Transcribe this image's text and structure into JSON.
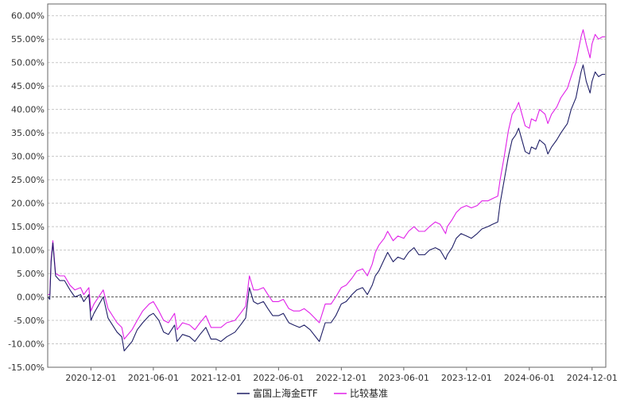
{
  "chart_data": {
    "type": "line",
    "title": "",
    "xlabel": "",
    "ylabel": "",
    "y_unit": "%",
    "ylim": [
      -15,
      62.5
    ],
    "y_ticks": [
      "60.00%",
      "55.00%",
      "50.00%",
      "45.00%",
      "40.00%",
      "35.00%",
      "30.00%",
      "25.00%",
      "20.00%",
      "15.00%",
      "10.00%",
      "5.00%",
      "0.00%",
      "-5.00%",
      "-10.00%",
      "-15.00%"
    ],
    "x_ticks": [
      "2020-12-01",
      "2021-06-01",
      "2021-12-01",
      "2022-06-01",
      "2022-12-01",
      "2023-06-01",
      "2023-12-01",
      "2024-06-01",
      "2024-12-01"
    ],
    "xlim": [
      "2020-07-28",
      "2025-01-10"
    ],
    "grid": true,
    "legend_position": "bottom-center",
    "series": [
      {
        "name": "富国上海金ETF",
        "color": "#1f1f66",
        "x": [
          "2020-07-28",
          "2020-08-03",
          "2020-08-07",
          "2020-08-12",
          "2020-08-20",
          "2020-09-01",
          "2020-09-15",
          "2020-10-01",
          "2020-10-15",
          "2020-11-01",
          "2020-11-10",
          "2020-11-25",
          "2020-12-01",
          "2020-12-10",
          "2021-01-06",
          "2021-01-20",
          "2021-02-15",
          "2021-03-01",
          "2021-03-08",
          "2021-03-31",
          "2021-04-15",
          "2021-05-01",
          "2021-05-20",
          "2021-06-01",
          "2021-06-17",
          "2021-07-01",
          "2021-07-15",
          "2021-08-02",
          "2021-08-09",
          "2021-08-25",
          "2021-09-15",
          "2021-09-30",
          "2021-10-15",
          "2021-11-01",
          "2021-11-16",
          "2021-12-01",
          "2021-12-15",
          "2022-01-01",
          "2022-01-25",
          "2022-02-10",
          "2022-02-25",
          "2022-03-08",
          "2022-03-20",
          "2022-04-01",
          "2022-04-18",
          "2022-05-01",
          "2022-05-15",
          "2022-06-01",
          "2022-06-15",
          "2022-07-01",
          "2022-07-15",
          "2022-08-01",
          "2022-08-15",
          "2022-09-01",
          "2022-09-28",
          "2022-10-15",
          "2022-11-01",
          "2022-11-15",
          "2022-12-01",
          "2022-12-15",
          "2023-01-01",
          "2023-01-15",
          "2023-02-01",
          "2023-02-15",
          "2023-03-01",
          "2023-03-10",
          "2023-03-20",
          "2023-04-05",
          "2023-04-15",
          "2023-05-01",
          "2023-05-15",
          "2023-06-01",
          "2023-06-15",
          "2023-07-01",
          "2023-07-15",
          "2023-08-01",
          "2023-08-15",
          "2023-09-01",
          "2023-09-15",
          "2023-10-01",
          "2023-10-06",
          "2023-10-20",
          "2023-11-01",
          "2023-11-15",
          "2023-12-01",
          "2023-12-15",
          "2024-01-01",
          "2024-01-15",
          "2024-02-01",
          "2024-02-15",
          "2024-03-01",
          "2024-03-08",
          "2024-03-20",
          "2024-04-01",
          "2024-04-12",
          "2024-04-22",
          "2024-05-01",
          "2024-05-20",
          "2024-06-01",
          "2024-06-07",
          "2024-06-20",
          "2024-07-01",
          "2024-07-17",
          "2024-07-25",
          "2024-08-05",
          "2024-08-20",
          "2024-09-01",
          "2024-09-20",
          "2024-10-01",
          "2024-10-15",
          "2024-10-30",
          "2024-11-05",
          "2024-11-14",
          "2024-11-25",
          "2024-12-01",
          "2024-12-10",
          "2024-12-20",
          "2024-12-31",
          "2025-01-08"
        ],
        "values": [
          0.0,
          -0.5,
          7.5,
          11.5,
          4.5,
          3.5,
          3.5,
          1.5,
          0.0,
          0.5,
          -1.0,
          0.5,
          -5.0,
          -3.5,
          0.0,
          -4.5,
          -7.5,
          -8.5,
          -11.5,
          -9.5,
          -7.0,
          -5.5,
          -4.0,
          -3.5,
          -5.0,
          -7.5,
          -8.0,
          -6.0,
          -9.5,
          -8.0,
          -8.5,
          -9.5,
          -8.0,
          -6.5,
          -9.0,
          -9.0,
          -9.5,
          -8.5,
          -7.5,
          -6.0,
          -4.5,
          2.0,
          -1.0,
          -1.5,
          -1.0,
          -2.5,
          -4.0,
          -4.0,
          -3.5,
          -5.5,
          -6.0,
          -6.5,
          -6.0,
          -7.0,
          -9.5,
          -5.5,
          -5.5,
          -4.0,
          -1.5,
          -1.0,
          0.5,
          1.5,
          2.0,
          0.5,
          2.5,
          4.5,
          5.5,
          8.0,
          9.5,
          7.5,
          8.5,
          8.0,
          9.5,
          10.5,
          9.0,
          9.0,
          10.0,
          10.5,
          10.0,
          8.0,
          9.0,
          10.5,
          12.5,
          13.5,
          13.0,
          12.5,
          13.5,
          14.5,
          15.0,
          15.5,
          16.0,
          20.0,
          25.0,
          30.0,
          33.5,
          34.5,
          36.0,
          31.0,
          30.5,
          32.0,
          31.5,
          33.5,
          32.5,
          30.5,
          32.0,
          33.5,
          35.0,
          37.0,
          40.0,
          42.5,
          48.0,
          49.5,
          46.0,
          43.5,
          46.0,
          48.0,
          47.0,
          47.5,
          47.5
        ]
      },
      {
        "name": "比较基准",
        "color": "#e020e8",
        "x": [
          "2020-07-28",
          "2020-08-03",
          "2020-08-07",
          "2020-08-12",
          "2020-08-20",
          "2020-09-01",
          "2020-09-15",
          "2020-10-01",
          "2020-10-15",
          "2020-11-01",
          "2020-11-10",
          "2020-11-25",
          "2020-12-01",
          "2020-12-10",
          "2021-01-06",
          "2021-01-20",
          "2021-02-15",
          "2021-03-01",
          "2021-03-08",
          "2021-03-31",
          "2021-04-15",
          "2021-05-01",
          "2021-05-20",
          "2021-06-01",
          "2021-06-17",
          "2021-07-01",
          "2021-07-15",
          "2021-08-02",
          "2021-08-09",
          "2021-08-25",
          "2021-09-15",
          "2021-09-30",
          "2021-10-15",
          "2021-11-01",
          "2021-11-16",
          "2021-12-01",
          "2021-12-15",
          "2022-01-01",
          "2022-01-25",
          "2022-02-10",
          "2022-02-25",
          "2022-03-08",
          "2022-03-20",
          "2022-04-01",
          "2022-04-18",
          "2022-05-01",
          "2022-05-15",
          "2022-06-01",
          "2022-06-15",
          "2022-07-01",
          "2022-07-15",
          "2022-08-01",
          "2022-08-15",
          "2022-09-01",
          "2022-09-28",
          "2022-10-15",
          "2022-11-01",
          "2022-11-15",
          "2022-12-01",
          "2022-12-15",
          "2023-01-01",
          "2023-01-15",
          "2023-02-01",
          "2023-02-15",
          "2023-03-01",
          "2023-03-10",
          "2023-03-20",
          "2023-04-05",
          "2023-04-15",
          "2023-05-01",
          "2023-05-15",
          "2023-06-01",
          "2023-06-15",
          "2023-07-01",
          "2023-07-15",
          "2023-08-01",
          "2023-08-15",
          "2023-09-01",
          "2023-09-15",
          "2023-10-01",
          "2023-10-06",
          "2023-10-20",
          "2023-11-01",
          "2023-11-15",
          "2023-12-01",
          "2023-12-15",
          "2024-01-01",
          "2024-01-15",
          "2024-02-01",
          "2024-02-15",
          "2024-03-01",
          "2024-03-08",
          "2024-03-20",
          "2024-04-01",
          "2024-04-12",
          "2024-04-22",
          "2024-05-01",
          "2024-05-20",
          "2024-06-01",
          "2024-06-07",
          "2024-06-20",
          "2024-07-01",
          "2024-07-17",
          "2024-07-25",
          "2024-08-05",
          "2024-08-20",
          "2024-09-01",
          "2024-09-20",
          "2024-10-01",
          "2024-10-15",
          "2024-10-30",
          "2024-11-05",
          "2024-11-14",
          "2024-11-25",
          "2024-12-01",
          "2024-12-10",
          "2024-12-20",
          "2024-12-31",
          "2025-01-08"
        ],
        "values": [
          0.5,
          0.5,
          8.0,
          12.0,
          5.0,
          4.5,
          4.5,
          2.5,
          1.5,
          2.0,
          0.5,
          2.0,
          -3.0,
          -1.5,
          1.5,
          -2.5,
          -5.5,
          -6.5,
          -9.0,
          -7.0,
          -5.0,
          -3.0,
          -1.5,
          -1.0,
          -3.0,
          -5.0,
          -5.5,
          -3.5,
          -7.0,
          -5.5,
          -6.0,
          -7.0,
          -5.5,
          -4.0,
          -6.5,
          -6.5,
          -6.5,
          -5.5,
          -5.0,
          -3.5,
          -2.0,
          4.5,
          1.5,
          1.5,
          2.0,
          0.5,
          -1.0,
          -1.0,
          -0.5,
          -2.5,
          -3.0,
          -3.0,
          -2.5,
          -3.5,
          -5.5,
          -1.5,
          -1.5,
          0.0,
          2.0,
          2.5,
          4.0,
          5.5,
          6.0,
          4.5,
          7.0,
          9.5,
          11.0,
          12.5,
          14.0,
          12.0,
          13.0,
          12.5,
          14.0,
          15.0,
          14.0,
          14.0,
          15.0,
          16.0,
          15.5,
          13.5,
          15.0,
          16.5,
          18.0,
          19.0,
          19.5,
          19.0,
          19.5,
          20.5,
          20.5,
          21.0,
          21.5,
          25.0,
          30.0,
          35.5,
          39.0,
          40.0,
          41.5,
          36.5,
          36.0,
          38.0,
          37.5,
          40.0,
          39.0,
          37.0,
          39.0,
          40.5,
          42.5,
          44.5,
          47.0,
          50.0,
          55.5,
          57.0,
          54.0,
          51.0,
          54.0,
          56.0,
          55.0,
          55.5,
          55.5
        ]
      }
    ]
  }
}
